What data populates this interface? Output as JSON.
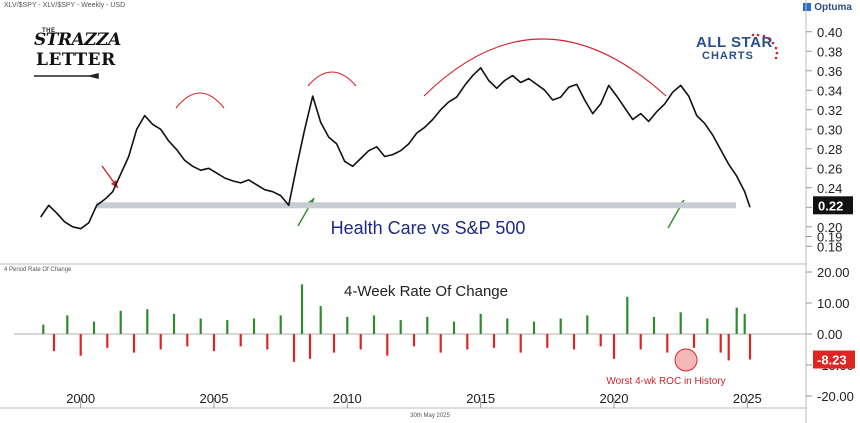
{
  "header": {
    "symbol_text": "XLV/$SPY - XLV/$SPY - Weekly - USD",
    "provider": "Optuma",
    "date_label": "30th May 2025"
  },
  "logos": {
    "left": {
      "the": "THE",
      "line1": "STRAZZA",
      "line2": "LETTER"
    },
    "right": {
      "line1": "ALL STAR",
      "line2": "CHARTS"
    }
  },
  "colors": {
    "price_line": "#111111",
    "support_band": "#c7ccd3",
    "arc": "#d2222d",
    "up_arrow": "#2e8b2e",
    "down_arrow": "#d2222d",
    "roc_pos": "#2e8b2e",
    "roc_neg": "#e02424",
    "title": "#1f2a80"
  },
  "chart_data": [
    {
      "type": "line",
      "title": "Health Care vs S&P 500",
      "series": [
        {
          "x": [
            1998.5,
            1998.8,
            1999.1,
            1999.4,
            1999.7,
            2000.0,
            2000.3,
            2000.6,
            2000.9,
            2001.2,
            2001.5,
            2001.8,
            2002.1,
            2002.4,
            2002.7,
            2003.0,
            2003.3,
            2003.6,
            2003.9,
            2004.2,
            2004.5,
            2004.8,
            2005.1,
            2005.4,
            2005.7,
            2006.0,
            2006.3,
            2006.6,
            2006.9,
            2007.2,
            2007.5,
            2007.8,
            2008.1,
            2008.4,
            2008.7,
            2009.0,
            2009.3,
            2009.6,
            2009.9,
            2010.2,
            2010.5,
            2010.8,
            2011.1,
            2011.4,
            2011.7,
            2012.0,
            2012.3,
            2012.6,
            2012.9,
            2013.2,
            2013.5,
            2013.8,
            2014.1,
            2014.4,
            2014.7,
            2015.0,
            2015.3,
            2015.6,
            2015.9,
            2016.2,
            2016.5,
            2016.8,
            2017.1,
            2017.4,
            2017.7,
            2018.0,
            2018.3,
            2018.6,
            2018.9,
            2019.2,
            2019.5,
            2019.8,
            2020.1,
            2020.4,
            2020.7,
            2021.0,
            2021.3,
            2021.6,
            2021.9,
            2022.2,
            2022.5,
            2022.8,
            2023.1,
            2023.4,
            2023.7,
            2024.0,
            2024.3,
            2024.6,
            2024.9,
            2025.1
          ],
          "y": [
            0.21,
            0.222,
            0.214,
            0.205,
            0.2,
            0.198,
            0.204,
            0.222,
            0.228,
            0.236,
            0.254,
            0.272,
            0.3,
            0.314,
            0.305,
            0.3,
            0.288,
            0.279,
            0.268,
            0.262,
            0.258,
            0.26,
            0.255,
            0.25,
            0.247,
            0.245,
            0.248,
            0.243,
            0.238,
            0.236,
            0.232,
            0.222,
            0.262,
            0.3,
            0.334,
            0.307,
            0.292,
            0.285,
            0.267,
            0.262,
            0.27,
            0.278,
            0.282,
            0.272,
            0.274,
            0.278,
            0.285,
            0.296,
            0.302,
            0.31,
            0.32,
            0.328,
            0.333,
            0.345,
            0.355,
            0.363,
            0.35,
            0.342,
            0.35,
            0.355,
            0.348,
            0.352,
            0.346,
            0.34,
            0.33,
            0.333,
            0.343,
            0.346,
            0.33,
            0.316,
            0.326,
            0.345,
            0.334,
            0.322,
            0.31,
            0.316,
            0.308,
            0.318,
            0.326,
            0.338,
            0.345,
            0.334,
            0.314,
            0.306,
            0.294,
            0.279,
            0.264,
            0.252,
            0.236,
            0.22
          ]
        }
      ],
      "ylim": [
        0.17,
        0.41
      ],
      "xlim": [
        1997.5,
        2027.2
      ],
      "y_ticks": [
        "0.18",
        "0.19",
        "0.20",
        "0.22",
        "0.24",
        "0.26",
        "0.28",
        "0.30",
        "0.32",
        "0.34",
        "0.36",
        "0.38",
        "0.40"
      ],
      "last_value": "0.22",
      "support_level": 0.222,
      "x_ticks": [
        "2000",
        "2005",
        "2010",
        "2015",
        "2020",
        "2025"
      ]
    },
    {
      "type": "bar",
      "title": "4-Week Rate Of Change",
      "panel_label": "4 Period Rate Of Change",
      "annotation": "Worst 4-wk ROC in History",
      "last_value": "-8.23",
      "ylim": [
        -20,
        20
      ],
      "y_ticks": [
        "20.00",
        "10.00",
        "0.00",
        "-10.00",
        "-20.00"
      ],
      "series": [
        {
          "x": [
            1998.6,
            1999.0,
            1999.5,
            2000.0,
            2000.5,
            2001.0,
            2001.5,
            2002.0,
            2002.5,
            2003.0,
            2003.5,
            2004.0,
            2004.5,
            2005.0,
            2005.5,
            2006.0,
            2006.5,
            2007.0,
            2007.5,
            2008.0,
            2008.3,
            2008.6,
            2009.0,
            2009.5,
            2010.0,
            2010.5,
            2011.0,
            2011.5,
            2012.0,
            2012.5,
            2013.0,
            2013.5,
            2014.0,
            2014.5,
            2015.0,
            2015.5,
            2016.0,
            2016.5,
            2017.0,
            2017.5,
            2018.0,
            2018.5,
            2019.0,
            2019.5,
            2020.0,
            2020.5,
            2021.0,
            2021.5,
            2022.0,
            2022.5,
            2023.0,
            2023.5,
            2024.0,
            2024.3,
            2024.6,
            2024.9,
            2025.1
          ],
          "y": [
            3.0,
            -5.5,
            6.0,
            -7.0,
            4.0,
            -4.5,
            7.5,
            -6.0,
            8.0,
            -5.0,
            6.5,
            -4.0,
            5.0,
            -5.5,
            4.5,
            -4.0,
            5.0,
            -5.0,
            6.0,
            -9.0,
            16.0,
            -8.0,
            9.0,
            -6.0,
            5.5,
            -5.0,
            6.0,
            -7.0,
            4.5,
            -4.0,
            5.5,
            -6.0,
            4.0,
            -5.0,
            6.5,
            -4.5,
            5.0,
            -6.0,
            4.0,
            -4.5,
            5.0,
            -5.0,
            6.0,
            -4.0,
            -8.0,
            12.0,
            -5.0,
            5.5,
            -6.0,
            7.0,
            -4.5,
            5.0,
            -6.0,
            -8.5,
            8.5,
            6.5,
            -8.23
          ]
        }
      ]
    }
  ]
}
